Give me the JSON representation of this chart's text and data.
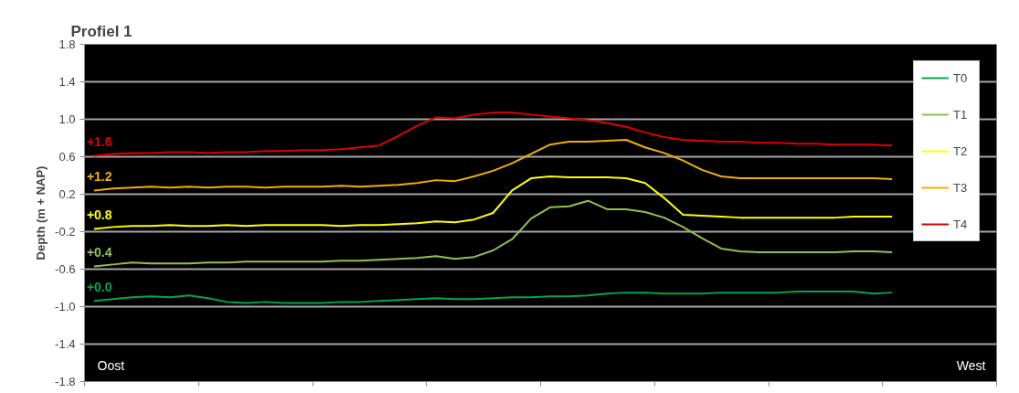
{
  "chart_data": {
    "type": "line",
    "title": "Profiel 1",
    "ylabel": "Depth (m + NAP)",
    "categories": [
      null,
      null,
      null,
      null,
      null,
      null,
      null,
      null,
      null,
      null,
      null,
      null,
      null,
      null,
      null,
      null,
      null,
      null,
      null,
      null,
      null,
      null,
      null,
      null,
      null,
      null,
      null,
      null,
      null,
      null,
      null,
      null,
      null,
      null,
      null,
      null,
      null,
      null,
      null,
      null,
      null,
      null,
      null,
      null,
      null,
      null,
      null,
      null
    ],
    "series": [
      {
        "name": "T0",
        "color": "#00a650",
        "values": [
          -0.94,
          -0.92,
          -0.9,
          -0.89,
          -0.9,
          -0.88,
          -0.91,
          -0.95,
          -0.96,
          -0.95,
          -0.96,
          -0.96,
          -0.96,
          -0.95,
          -0.95,
          -0.94,
          -0.93,
          -0.92,
          -0.91,
          -0.92,
          -0.92,
          -0.91,
          -0.9,
          -0.9,
          -0.89,
          -0.89,
          -0.88,
          -0.86,
          -0.85,
          -0.85,
          -0.86,
          -0.86,
          -0.86,
          -0.85,
          -0.85,
          -0.85,
          -0.85,
          -0.84,
          -0.84,
          -0.84,
          -0.84,
          -0.86,
          -0.85,
          null,
          null,
          null,
          null,
          null
        ]
      },
      {
        "name": "T1",
        "color": "#92c050",
        "values": [
          -0.57,
          -0.55,
          -0.53,
          -0.54,
          -0.54,
          -0.54,
          -0.53,
          -0.53,
          -0.52,
          -0.52,
          -0.52,
          -0.52,
          -0.52,
          -0.51,
          -0.51,
          -0.5,
          -0.49,
          -0.48,
          -0.46,
          -0.49,
          -0.47,
          -0.4,
          -0.28,
          -0.06,
          0.06,
          0.07,
          0.13,
          0.04,
          0.04,
          0.01,
          -0.05,
          -0.15,
          -0.27,
          -0.38,
          -0.41,
          -0.42,
          -0.42,
          -0.42,
          -0.42,
          -0.42,
          -0.41,
          -0.41,
          -0.42,
          null,
          null,
          null,
          null,
          null
        ]
      },
      {
        "name": "T2",
        "color": "#ffff00",
        "values": [
          -0.17,
          -0.15,
          -0.14,
          -0.14,
          -0.13,
          -0.14,
          -0.14,
          -0.13,
          -0.14,
          -0.13,
          -0.13,
          -0.13,
          -0.13,
          -0.14,
          -0.13,
          -0.13,
          -0.12,
          -0.11,
          -0.09,
          -0.1,
          -0.07,
          0.0,
          0.24,
          0.37,
          0.39,
          0.38,
          0.38,
          0.38,
          0.37,
          0.32,
          0.16,
          -0.02,
          -0.03,
          -0.04,
          -0.05,
          -0.05,
          -0.05,
          -0.05,
          -0.05,
          -0.05,
          -0.04,
          -0.04,
          -0.04,
          null,
          null,
          null,
          null,
          null
        ]
      },
      {
        "name": "T3",
        "color": "#f0b000",
        "values": [
          0.24,
          0.26,
          0.27,
          0.28,
          0.27,
          0.28,
          0.27,
          0.28,
          0.28,
          0.27,
          0.28,
          0.28,
          0.28,
          0.29,
          0.28,
          0.29,
          0.3,
          0.32,
          0.35,
          0.34,
          0.39,
          0.45,
          0.53,
          0.63,
          0.73,
          0.76,
          0.76,
          0.77,
          0.78,
          0.7,
          0.64,
          0.56,
          0.46,
          0.39,
          0.37,
          0.37,
          0.37,
          0.37,
          0.37,
          0.37,
          0.37,
          0.37,
          0.36,
          null,
          null,
          null,
          null,
          null
        ]
      },
      {
        "name": "T4",
        "color": "#e00000",
        "values": [
          0.61,
          0.63,
          0.64,
          0.64,
          0.65,
          0.65,
          0.64,
          0.65,
          0.65,
          0.66,
          0.66,
          0.67,
          0.67,
          0.68,
          0.7,
          0.72,
          0.82,
          0.93,
          1.02,
          1.01,
          1.05,
          1.07,
          1.07,
          1.05,
          1.03,
          1.01,
          0.99,
          0.96,
          0.92,
          0.86,
          0.81,
          0.78,
          0.77,
          0.76,
          0.76,
          0.75,
          0.75,
          0.74,
          0.74,
          0.73,
          0.73,
          0.73,
          0.72,
          null,
          null,
          null,
          null,
          null
        ]
      }
    ],
    "annotations": [
      "+1.6",
      "+1.2",
      "+0.8",
      "+0.4",
      "+0.0",
      "Oost",
      "West"
    ],
    "ylim": [
      -1.8,
      1.8
    ],
    "yticks": [
      -1.8,
      -1.4,
      {
        "value": -1,
        "label": "-1.0"
      },
      -0.6,
      -0.2,
      0.2,
      0.6,
      {
        "value": 1,
        "label": "1.0"
      },
      1.4,
      1.8
    ],
    "grid": "y",
    "legend": "top right",
    "marker": "none",
    "line_style": "solid",
    "tick_labels": "y"
  }
}
